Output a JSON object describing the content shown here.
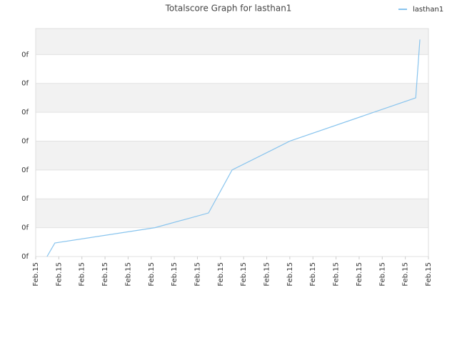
{
  "chart_data": {
    "type": "line",
    "title": "Totalscore Graph for lasthan1",
    "x": [
      0.49,
      0.83,
      5.16,
      7.48,
      8.5,
      11.0,
      16.45,
      16.63
    ],
    "series": [
      {
        "name": "lasthan1",
        "color": "#88c4ee",
        "values": [
          0,
          0.47,
          1.0,
          1.51,
          3.0,
          4.0,
          5.5,
          7.52
        ]
      }
    ],
    "xlim": [
      0,
      17
    ],
    "xticks": [
      {
        "value": 0,
        "label": "Feb.15"
      },
      {
        "value": 1,
        "label": "Feb.15"
      },
      {
        "value": 2,
        "label": "Feb.15"
      },
      {
        "value": 3,
        "label": "Feb.15"
      },
      {
        "value": 4,
        "label": "Feb.15"
      },
      {
        "value": 5,
        "label": "Feb.15"
      },
      {
        "value": 6,
        "label": "Feb.15"
      },
      {
        "value": 7,
        "label": "Feb.15"
      },
      {
        "value": 8,
        "label": "Feb.15"
      },
      {
        "value": 9,
        "label": "Feb.15"
      },
      {
        "value": 10,
        "label": "Feb.15"
      },
      {
        "value": 11,
        "label": "Feb.15"
      },
      {
        "value": 12,
        "label": "Feb.15"
      },
      {
        "value": 13,
        "label": "Feb.15"
      },
      {
        "value": 14,
        "label": "Feb.15"
      },
      {
        "value": 15,
        "label": "Feb.15"
      },
      {
        "value": 16,
        "label": "Feb.15"
      },
      {
        "value": 17,
        "label": "Feb.15"
      }
    ],
    "ylim": [
      0,
      7.9
    ],
    "yticks": [
      {
        "value": 0,
        "label": "0f"
      },
      {
        "value": 1,
        "label": "0f"
      },
      {
        "value": 2,
        "label": "0f"
      },
      {
        "value": 3,
        "label": "0f"
      },
      {
        "value": 4,
        "label": "0f"
      },
      {
        "value": 5,
        "label": "0f"
      },
      {
        "value": 6,
        "label": "0f"
      },
      {
        "value": 7,
        "label": "0f"
      }
    ],
    "grid": true,
    "legend": "top-right"
  }
}
